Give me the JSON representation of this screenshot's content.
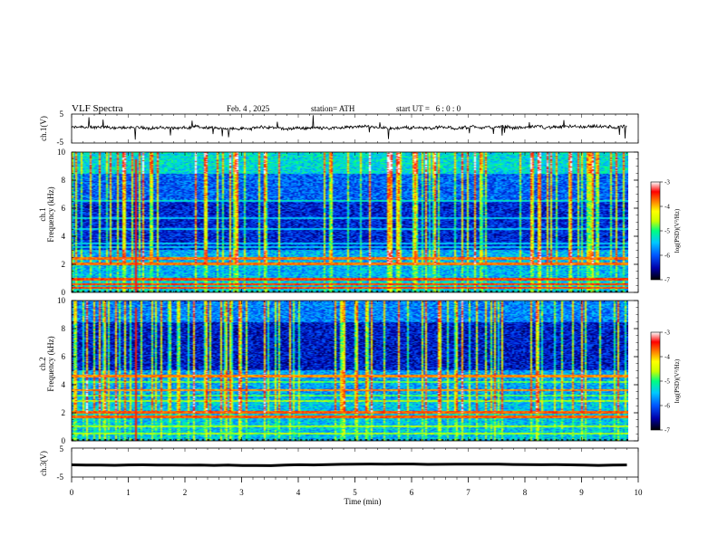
{
  "header": {
    "title": "VLF Spectra",
    "date": "Feb. 4 , 2025",
    "station": "station= ATH",
    "start_ut": "start UT =   6 : 0 : 0"
  },
  "chart_data": [
    {
      "type": "line",
      "name": "ch1-waveform",
      "ylabel": "ch.1(V)",
      "ylim": [
        -5,
        5
      ],
      "yticks": [
        "5",
        "-5"
      ],
      "x_range_min": [
        0,
        9.8
      ],
      "baseline_volts": 0.3,
      "trace_color": "#000000"
    },
    {
      "type": "heatmap",
      "name": "ch1-spectrogram",
      "ylabel": "ch.1\nFrequency (kHz)",
      "ylabel_lines": [
        "ch.1",
        "Frequency (kHz)"
      ],
      "ylim_khz": [
        0,
        10
      ],
      "yticks": [
        "0",
        "2",
        "4",
        "6",
        "8",
        "10"
      ],
      "x_range_min": [
        0,
        9.8
      ],
      "colorbar": {
        "label": "log(PSD)(V²/Hz)",
        "range": [
          -7,
          -3
        ],
        "ticks": [
          "-3",
          "-4",
          "-5",
          "-6",
          "-7"
        ],
        "colors": [
          "#000000",
          "#0000aa",
          "#0055ff",
          "#00c8ff",
          "#00ff80",
          "#c8ff00",
          "#ffff00",
          "#ff8000",
          "#ff0000",
          "#ffffff"
        ]
      },
      "features": {
        "strong_bands_khz": [
          0.3,
          0.55,
          0.9,
          2.0,
          2.4
        ],
        "moderate_bands_khz": [
          3.2,
          3.5,
          4.5,
          5.3,
          6.5
        ],
        "narrowband_red_line_min": 1.12
      }
    },
    {
      "type": "heatmap",
      "name": "ch2-spectrogram",
      "ylabel": "ch.2\nFrequency (kHz)",
      "ylabel_lines": [
        "ch.2",
        "Frequency (kHz)"
      ],
      "ylim_khz": [
        0,
        10
      ],
      "yticks": [
        "0",
        "2",
        "4",
        "6",
        "8",
        "10"
      ],
      "x_range_min": [
        0,
        9.8
      ],
      "colorbar": {
        "label": "log(PSD)(V²/Hz)",
        "range": [
          -7,
          -3
        ],
        "ticks": [
          "-3",
          "-4",
          "-5",
          "-6",
          "-7"
        ]
      },
      "features": {
        "strong_bands_khz": [
          1.7,
          2.0,
          3.6,
          4.6
        ],
        "moderate_bands_khz": [
          0.5,
          1.0,
          2.8,
          3.2,
          4.2
        ],
        "narrowband_red_line_min": 1.12
      }
    },
    {
      "type": "line",
      "name": "ch3-waveform",
      "ylabel": "ch.3(V)",
      "ylim": [
        -5,
        5
      ],
      "yticks": [
        "5",
        "-5"
      ],
      "x_range_min": [
        0,
        9.8
      ],
      "baseline_volts": -0.8,
      "trace_color": "#000000"
    }
  ],
  "x_axis": {
    "label": "Time  (min)",
    "ticks": [
      "0",
      "1",
      "2",
      "3",
      "4",
      "5",
      "6",
      "7",
      "8",
      "9",
      "10"
    ],
    "range": [
      0,
      10
    ]
  }
}
